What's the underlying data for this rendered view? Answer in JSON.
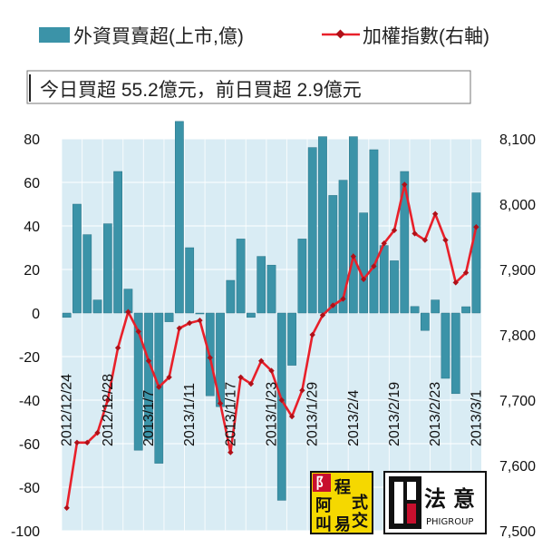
{
  "legend": {
    "bar_label": "外資買賣超(上市,億)",
    "line_label": "加權指數(右軸)"
  },
  "summary_text": "今日買超 55.2億元，前日買超 2.9億元",
  "colors": {
    "bar": "#3b93a8",
    "bar_edge": "#2a7488",
    "line": "#e8202a",
    "marker": "#b01018",
    "plot_bg": "#d9ecf4",
    "grid": "#ffffff"
  },
  "chart_data": {
    "type": "bar+line",
    "x_labels": [
      "2012/12/24",
      "2012/12/28",
      "2013/1/7",
      "2013/1/11",
      "2013/1/17",
      "2013/1/23",
      "2013/1/29",
      "2013/2/4",
      "2013/2/19",
      "2013/2/23",
      "2013/3/1"
    ],
    "x_label_indices": [
      0,
      4,
      8,
      12,
      16,
      20,
      24,
      28,
      32,
      36,
      40
    ],
    "left_axis": {
      "min": -100,
      "max": 80,
      "step": 20,
      "ticks": [
        "80",
        "60",
        "40",
        "20",
        "0",
        "-20",
        "-40",
        "-60",
        "-80",
        "-100"
      ]
    },
    "right_axis": {
      "min": 7500,
      "max": 8100,
      "step": 100,
      "ticks": [
        "8,100",
        "8,000",
        "7,900",
        "7,800",
        "7,700",
        "7,600",
        "7,500"
      ]
    },
    "series": [
      {
        "name": "外資買賣超(上市,億)",
        "type": "bar",
        "axis": "left",
        "values": [
          -2,
          50,
          36,
          6,
          41,
          65,
          11,
          -63,
          -58,
          -69,
          -4,
          88,
          30,
          0,
          -38,
          -43,
          15,
          34,
          -2,
          26,
          22,
          -86,
          -24,
          34,
          76,
          81,
          54,
          61,
          81,
          46,
          75,
          31,
          24,
          65,
          3,
          -8,
          6,
          -30,
          -37,
          2.9,
          55.2
        ]
      },
      {
        "name": "加權指數(右軸)",
        "type": "line",
        "axis": "right",
        "values": [
          7535,
          7635,
          7635,
          7650,
          7700,
          7780,
          7835,
          7805,
          7760,
          7720,
          7735,
          7810,
          7818,
          7822,
          7765,
          7695,
          7620,
          7735,
          7725,
          7760,
          7745,
          7700,
          7675,
          7715,
          7800,
          7830,
          7845,
          7855,
          7920,
          7885,
          7905,
          7940,
          7960,
          8030,
          7955,
          7945,
          7985,
          7945,
          7880,
          7895,
          7965
        ]
      }
    ]
  },
  "logos": {
    "left": {
      "chars": [
        "阿",
        "叫",
        "程",
        "式",
        "交",
        "易"
      ],
      "badge": "阝"
    },
    "right": {
      "chars": [
        "法",
        "意"
      ],
      "sub": "PHIGROUP"
    }
  }
}
